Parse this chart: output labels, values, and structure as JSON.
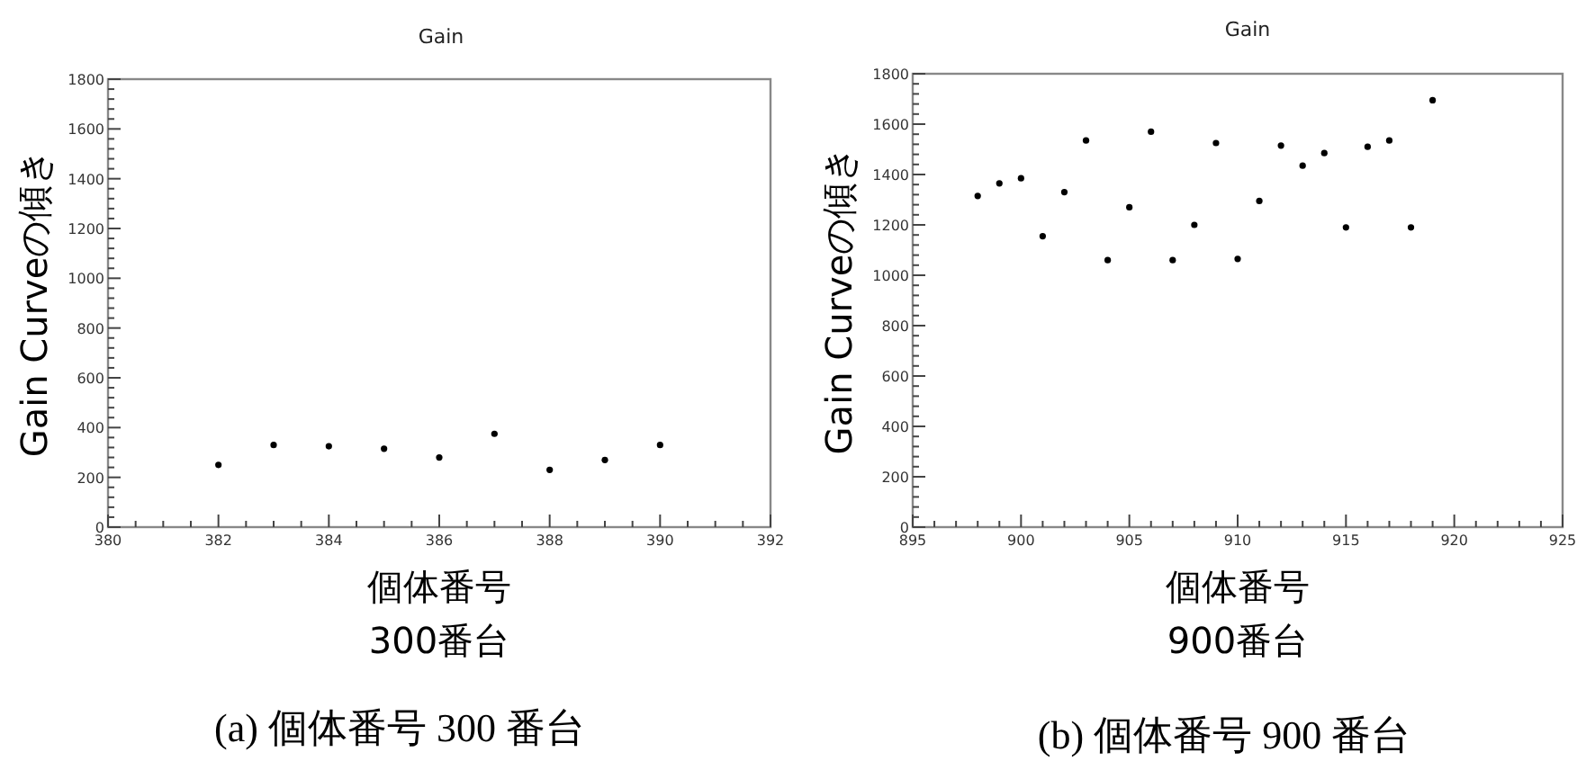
{
  "chart_data": [
    {
      "type": "scatter",
      "title": "Gain",
      "xlabel": "個体番号",
      "ylabel": "Gain Curveの傾き",
      "annotations": [
        "300番台",
        "(a) 個体番号 300 番台"
      ],
      "x": [
        382,
        383,
        384,
        385,
        386,
        387,
        388,
        389,
        390
      ],
      "values": [
        250,
        330,
        325,
        315,
        280,
        375,
        230,
        270,
        330
      ],
      "color": "#000000",
      "marker": "circle",
      "grid": false,
      "xlim": [
        380,
        392
      ],
      "xticks": [
        380,
        382,
        384,
        386,
        388,
        390,
        392
      ],
      "ylim": [
        0,
        1800
      ],
      "yticks": [
        0,
        200,
        400,
        600,
        800,
        1000,
        1200,
        1400,
        1600,
        1800
      ]
    },
    {
      "type": "scatter",
      "title": "Gain",
      "xlabel": "個体番号",
      "ylabel": "Gain Curveの傾き",
      "annotations": [
        "900番台",
        "(b) 個体番号 900 番台"
      ],
      "x": [
        898,
        899,
        900,
        901,
        902,
        903,
        904,
        905,
        906,
        907,
        908,
        909,
        910,
        911,
        912,
        913,
        914,
        915,
        916,
        917,
        918,
        919
      ],
      "values": [
        1315,
        1365,
        1385,
        1155,
        1330,
        1535,
        1060,
        1270,
        1570,
        1060,
        1200,
        1525,
        1065,
        1295,
        1515,
        1435,
        1485,
        1190,
        1510,
        1535,
        1190,
        1695
      ],
      "color": "#000000",
      "marker": "circle",
      "grid": false,
      "xlim": [
        895,
        925
      ],
      "xticks": [
        895,
        900,
        905,
        910,
        915,
        920,
        925
      ],
      "ylim": [
        0,
        1800
      ],
      "yticks": [
        0,
        200,
        400,
        600,
        800,
        1000,
        1200,
        1400,
        1600,
        1800
      ]
    }
  ]
}
